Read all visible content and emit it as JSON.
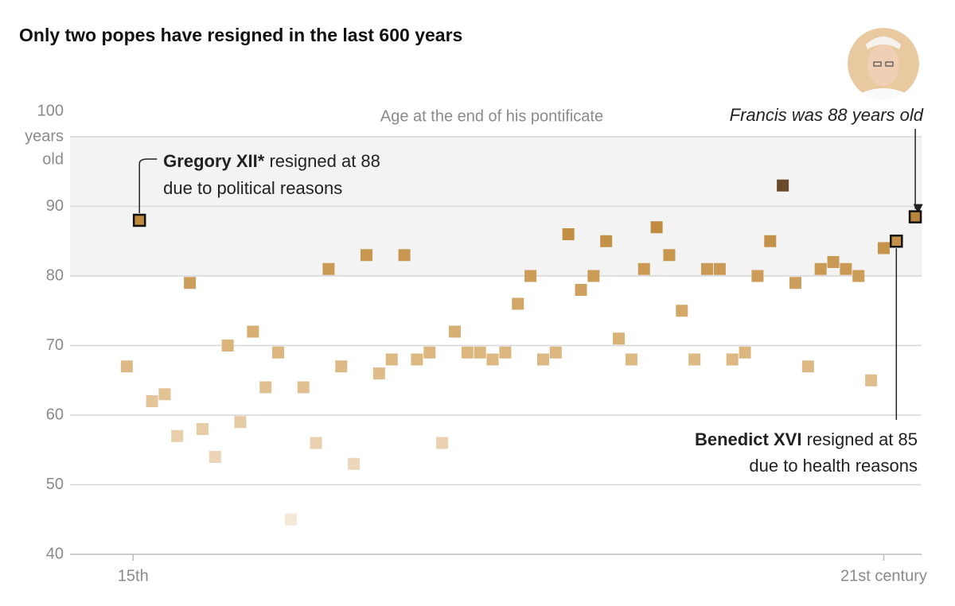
{
  "chart_data": {
    "type": "scatter",
    "title": "Only two popes have resigned in the last 600 years",
    "subtitle": "Age at the end of his pontificate",
    "y_unit": [
      "years",
      "old"
    ],
    "x": [
      0,
      1,
      2,
      3,
      4,
      5,
      6,
      7,
      8,
      9,
      10,
      11,
      12,
      13,
      14,
      15,
      16,
      17,
      18,
      19,
      20,
      21,
      22,
      23,
      24,
      25,
      26,
      27,
      28,
      29,
      30,
      31,
      32,
      33,
      34,
      35,
      36,
      37,
      38,
      39,
      40,
      41,
      42,
      43,
      44,
      45,
      46,
      47,
      48,
      49,
      50,
      51,
      52,
      53,
      54,
      55,
      56,
      57,
      58,
      59,
      60,
      61,
      62.5
    ],
    "values": [
      67,
      88,
      62,
      63,
      57,
      79,
      58,
      54,
      70,
      59,
      72,
      64,
      69,
      45,
      64,
      56,
      81,
      67,
      53,
      83,
      66,
      68,
      83,
      68,
      69,
      56,
      72,
      69,
      69,
      68,
      69,
      76,
      80,
      68,
      69,
      86,
      78,
      80,
      85,
      71,
      68,
      81,
      87,
      83,
      75,
      68,
      81,
      81,
      68,
      69,
      80,
      85,
      93,
      79,
      67,
      81,
      82,
      81,
      80,
      65,
      84,
      85,
      88.5
    ],
    "xlim": [
      -4.5,
      63
    ],
    "xticks": [
      {
        "value": 0.5,
        "label": "15th"
      },
      {
        "value": 60,
        "label": "21st century"
      }
    ],
    "ylim": [
      40,
      100
    ],
    "yticks": [
      40,
      50,
      60,
      70,
      80,
      90,
      100
    ],
    "grid": true,
    "shaded_range": [
      80,
      100
    ],
    "color_stops": [
      [
        45,
        "#f4e8d8"
      ],
      [
        70,
        "#dab47a"
      ],
      [
        88,
        "#c08a3e"
      ],
      [
        93,
        "#6b4a2a"
      ]
    ],
    "annotations": [
      {
        "point": 1,
        "name": "Gregory XII*",
        "text": [
          "resigned at 88",
          "due to political reasons"
        ]
      },
      {
        "point": 61,
        "name": "Benedict XVI",
        "text": [
          "resigned at 85",
          "due to health reasons"
        ]
      },
      {
        "point": 62,
        "text": [
          "Francis was 88 years old"
        ]
      }
    ]
  }
}
